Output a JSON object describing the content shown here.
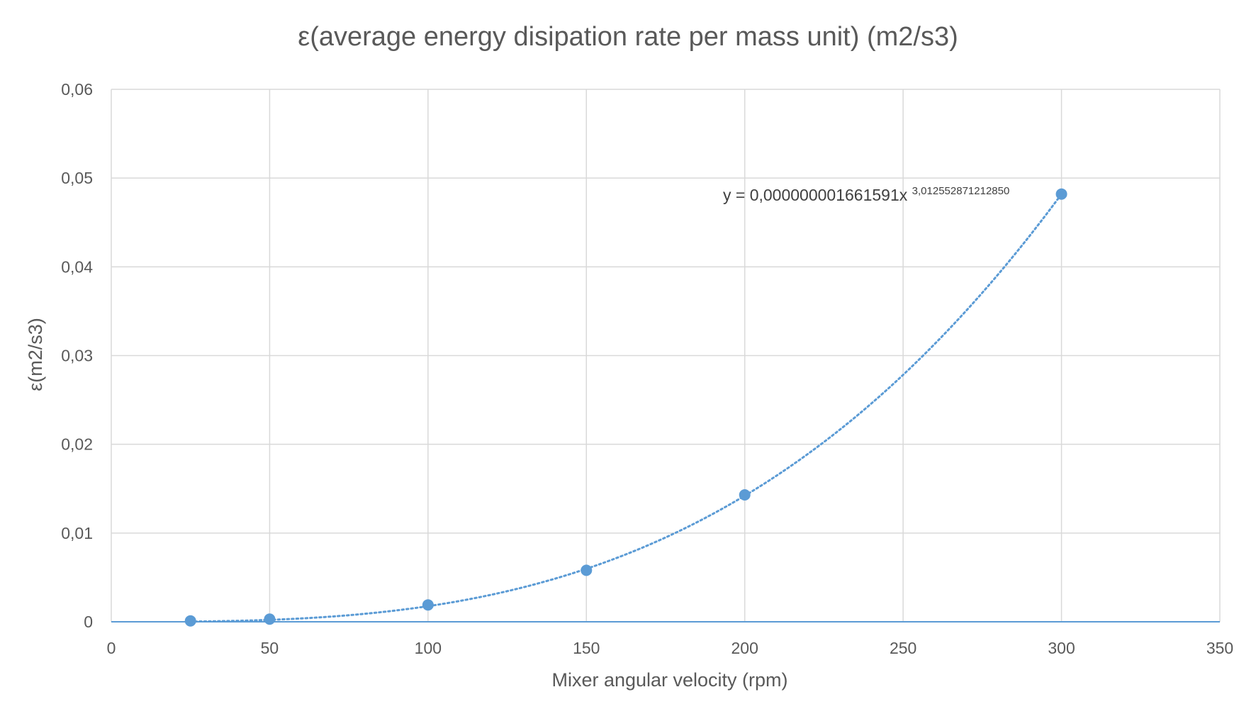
{
  "chart_data": {
    "type": "scatter",
    "title": "ε(average energy disipation rate per mass unit) (m2/s3)",
    "xlabel": "Mixer angular velocity (rpm)",
    "ylabel": "ε(m2/s3)",
    "xlim": [
      0,
      350
    ],
    "ylim": [
      0,
      0.06
    ],
    "x_ticks": [
      0,
      50,
      100,
      150,
      200,
      250,
      300,
      350
    ],
    "x_tick_labels": [
      "0",
      "50",
      "100",
      "150",
      "200",
      "250",
      "300",
      "350"
    ],
    "y_ticks": [
      0,
      0.01,
      0.02,
      0.03,
      0.04,
      0.05,
      0.06
    ],
    "y_tick_labels": [
      "0",
      "0,01",
      "0,02",
      "0,03",
      "0,04",
      "0,05",
      "0,06"
    ],
    "grid": true,
    "series": [
      {
        "points": [
          {
            "x": 25,
            "y": 0.0001
          },
          {
            "x": 50,
            "y": 0.0003
          },
          {
            "x": 100,
            "y": 0.0019
          },
          {
            "x": 150,
            "y": 0.0058
          },
          {
            "x": 200,
            "y": 0.0143
          },
          {
            "x": 300,
            "y": 0.0482
          }
        ],
        "color": "#5b9bd5"
      }
    ],
    "trendline": {
      "type": "power",
      "coefficient": 1.661591e-09,
      "exponent": 3.01255287121285,
      "equation_base": "y = 0,000000001661591x",
      "equation_exponent": "3,012552871212850",
      "style": "dotted",
      "color": "#5b9bd5"
    }
  }
}
